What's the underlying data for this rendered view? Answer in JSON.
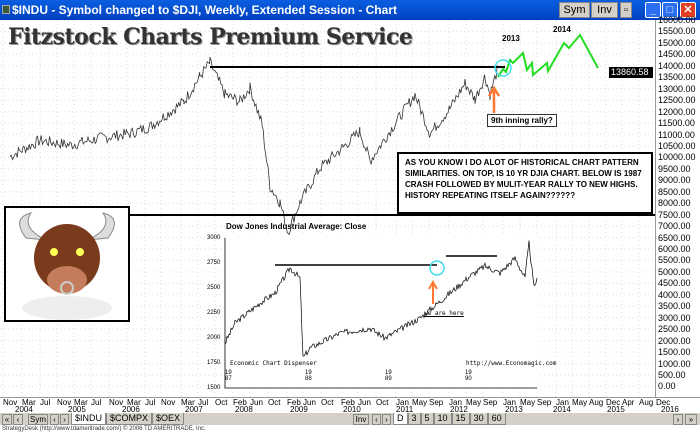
{
  "window": {
    "title": "$INDU - Symbol changed to $DJI, Weekly, Extended Session - Chart",
    "sym_label": "Sym",
    "inv_label": "Inv"
  },
  "banner": "Fitzstock Charts Premium Service",
  "annotations": {
    "year_2013": "2013",
    "year_2014": "2014",
    "callout": "9th inning rally?",
    "note": "AS YOU KNOW I DO ALOT OF HISTORICAL CHART PATTERN SIMILARITIES.    ON TOP, IS 10 YR DJIA CHART.  BELOW IS 1987 CRASH FOLLOWED BY MULIT-YEAR RALLY TO NEW HIGHS.  HISTORY REPEATING ITSELF AGAIN??????"
  },
  "price_axis": {
    "labels": [
      "16000.00",
      "15500.00",
      "15000.00",
      "14500.00",
      "14000.00",
      "13500.00",
      "13000.00",
      "12500.00",
      "12000.00",
      "11500.00",
      "11000.00",
      "10500.00",
      "10000.00",
      "9500.00",
      "9000.00",
      "8500.00",
      "8000.00",
      "7500.00",
      "7000.00",
      "6500.00",
      "6000.00",
      "5500.00",
      "5000.00",
      "4500.00",
      "4000.00",
      "3500.00",
      "3000.00",
      "2500.00",
      "2000.00",
      "1500.00",
      "1000.00",
      "500.00",
      "0.00"
    ],
    "current": "13860.58"
  },
  "date_axis": {
    "months": [
      "Nov",
      "Mar",
      "Jul",
      "Nov",
      "Mar",
      "Jul",
      "Nov",
      "Mar",
      "Jul",
      "Nov",
      "Mar",
      "Jul",
      "Oct",
      "Feb",
      "Jun",
      "Oct",
      "Feb",
      "Jun",
      "Oct",
      "Feb",
      "Jun",
      "Oct",
      "Jan",
      "May",
      "Sep",
      "Jan",
      "May",
      "Sep",
      "Jan",
      "May",
      "Sep",
      "Jan",
      "May",
      "Aug",
      "Dec",
      "Apr",
      "Aug",
      "Dec"
    ],
    "years": [
      "2004",
      "2005",
      "2006",
      "2007",
      "2008",
      "2009",
      "2010",
      "2011",
      "2012",
      "2013",
      "2014",
      "2015",
      "2016"
    ]
  },
  "inset": {
    "title": "Dow Jones Industrial Average: Close",
    "y_labels": [
      "3000",
      "2750",
      "2500",
      "2250",
      "2000",
      "1750",
      "1500"
    ],
    "x_labels": [
      "19 87",
      "19 88",
      "19 89",
      "19 90"
    ],
    "source_left": "Economic Chart Dispenser",
    "source_right": "http://www.Economagic.com",
    "marker": "we are here"
  },
  "toolbar": {
    "sym": "Sym",
    "inv": "Inv",
    "symbols": [
      "$INDU",
      "$COMPX",
      "$OEX"
    ],
    "intervals": [
      "D",
      "3",
      "5",
      "10",
      "15",
      "30",
      "60"
    ]
  },
  "footer": "StrategyDesk (http://www.tdameritrade.com/) © 2006 TD AMERITRADE, Inc.",
  "colors": {
    "projection": "#22dd22",
    "circle": "#44ddee",
    "arrow": "#ff7733",
    "titlebar": "#0a5fe0"
  }
}
